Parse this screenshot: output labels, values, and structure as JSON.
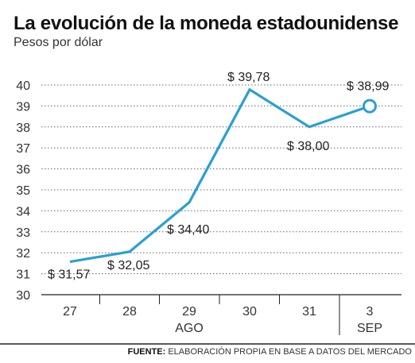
{
  "header": {
    "title": "La evolución de la moneda estadounidense",
    "subtitle": "Pesos por dólar"
  },
  "footer": {
    "source_label": "FUENTE:",
    "source_text": "ELABORACIÓN PROPIA EN BASE A DATOS DEL MERCADO"
  },
  "chart_data": {
    "type": "line",
    "title": "La evolución de la moneda estadounidense",
    "subtitle": "Pesos por dólar",
    "categories": [
      "27",
      "28",
      "29",
      "30",
      "31",
      "3"
    ],
    "month_labels": [
      {
        "after_category": "29",
        "label": "AGO"
      },
      {
        "after_category": "3",
        "label": "SEP"
      }
    ],
    "series": [
      {
        "values": [
          31.57,
          32.05,
          34.4,
          39.78,
          38.0,
          38.99
        ]
      }
    ],
    "data_labels": [
      "$ 31,57",
      "$ 32,05",
      "$ 34,40",
      "$ 39,78",
      "$ 38,00",
      "$ 38,99"
    ],
    "label_points": [
      0,
      1,
      2,
      3,
      4,
      5
    ],
    "ylim": [
      30,
      40
    ],
    "yticks": [
      30,
      31,
      32,
      33,
      34,
      35,
      36,
      37,
      38,
      39,
      40
    ],
    "grid": true,
    "line_color": "#2a9fd6",
    "highlight_last_point": true
  }
}
